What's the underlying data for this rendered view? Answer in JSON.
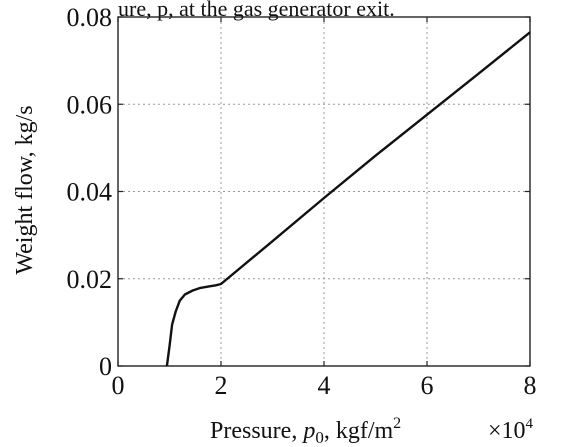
{
  "header_fragment": "ure, p, at the gas generator exit.",
  "chart_data": {
    "type": "line",
    "title": "",
    "xlabel": {
      "prefix": "Pressure, ",
      "var": "p",
      "sub": "0",
      "suffix": ", kgf/m",
      "sup": "2"
    },
    "xlabel_text": "Pressure, p0, kgf/m2",
    "x_multiplier": {
      "base": "×10",
      "exp": "4"
    },
    "ylabel": "Weight flow, kg/s",
    "xlim": [
      0,
      8
    ],
    "ylim": [
      0,
      0.08
    ],
    "x_ticks": [
      0,
      2,
      4,
      6,
      8
    ],
    "x_tick_labels": [
      "0",
      "2",
      "4",
      "6",
      "8"
    ],
    "y_ticks": [
      0,
      0.02,
      0.04,
      0.06,
      0.08
    ],
    "y_tick_labels": [
      "0",
      "0.02",
      "0.04",
      "0.06",
      "0.08"
    ],
    "grid": true,
    "series": [
      {
        "x": [
          0.95,
          1.0,
          1.05,
          1.12,
          1.2,
          1.3,
          1.45,
          1.6,
          1.75,
          1.9,
          2.0,
          3.0,
          4.0,
          5.0,
          6.0,
          7.0,
          8.0
        ],
        "y": [
          0.0,
          0.0045,
          0.0095,
          0.0125,
          0.015,
          0.0164,
          0.0173,
          0.0179,
          0.0182,
          0.0185,
          0.0188,
          0.0286,
          0.0385,
          0.0482,
          0.0576,
          0.067,
          0.0765
        ]
      }
    ]
  }
}
